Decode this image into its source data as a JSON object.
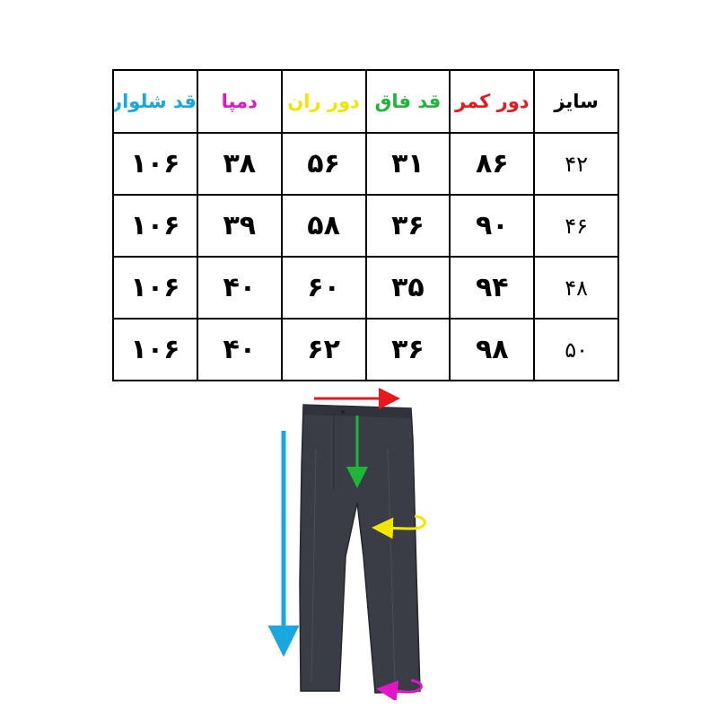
{
  "table": {
    "headers": [
      {
        "label": "سایز",
        "color": "#000000"
      },
      {
        "label": "دور کمر",
        "color": "#e8191c"
      },
      {
        "label": "قد فاق",
        "color": "#1fb53a"
      },
      {
        "label": "دور ران",
        "color": "#f2e600"
      },
      {
        "label": "دمپا",
        "color": "#e216c8"
      },
      {
        "label": "قد شلوار",
        "color": "#1aa6de"
      }
    ],
    "rows": [
      [
        "۴۲",
        "۸۶",
        "۳۱",
        "۵۶",
        "۳۸",
        "۱۰۶"
      ],
      [
        "۴۶",
        "۹۰",
        "۳۶",
        "۵۸",
        "۳۹",
        "۱۰۶"
      ],
      [
        "۴۸",
        "۹۴",
        "۳۵",
        "۶۰",
        "۴۰",
        "۱۰۶"
      ],
      [
        "۵۰",
        "۹۸",
        "۳۶",
        "۶۲",
        "۴۰",
        "۱۰۶"
      ]
    ]
  },
  "diagram": {
    "arrows": [
      {
        "name": "waist-arrow",
        "measure": "دور کمر",
        "color": "#e8191c"
      },
      {
        "name": "rise-arrow",
        "measure": "قد فاق",
        "color": "#1fb53a"
      },
      {
        "name": "thigh-arrow",
        "measure": "دور ران",
        "color": "#f2e600"
      },
      {
        "name": "hem-arrow",
        "measure": "دمپا",
        "color": "#e216c8"
      },
      {
        "name": "length-arrow",
        "measure": "قد شلوار",
        "color": "#1aa6de"
      }
    ],
    "trousers_color": "#3a3d45"
  }
}
